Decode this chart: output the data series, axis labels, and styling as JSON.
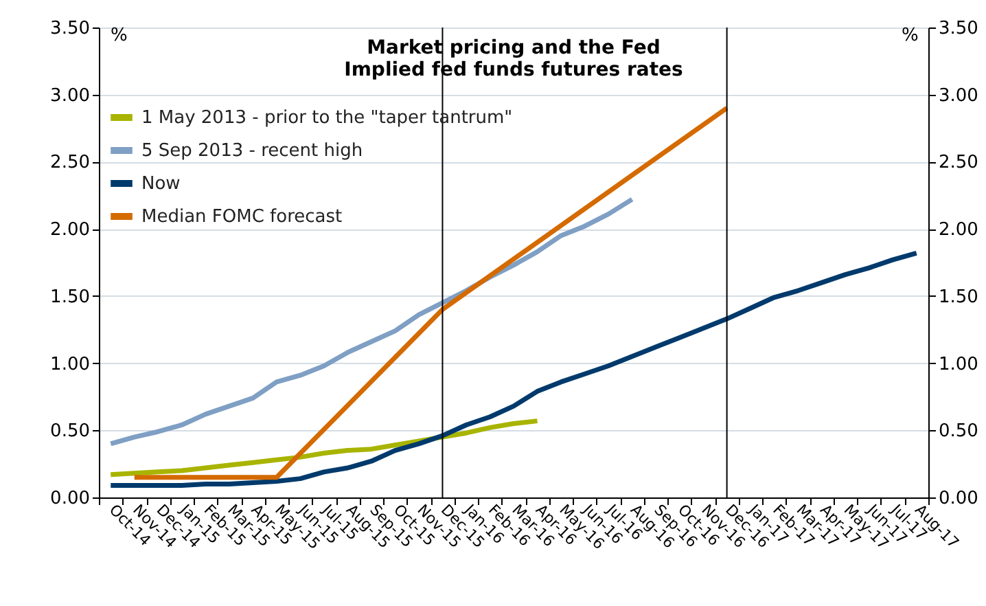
{
  "chart_data": {
    "type": "line",
    "title": "Market pricing and the Fed",
    "subtitle": "Implied fed funds futures rates",
    "ylabel": "%",
    "y2label": "%",
    "categories": [
      "Oct-14",
      "Nov-14",
      "Dec-14",
      "Jan-15",
      "Feb-15",
      "Mar-15",
      "Apr-15",
      "May-15",
      "Jun-15",
      "Jul-15",
      "Aug-15",
      "Sep-15",
      "Oct-15",
      "Nov-15",
      "Dec-15",
      "Jan-16",
      "Feb-16",
      "Mar-16",
      "Apr-16",
      "May-16",
      "Jun-16",
      "Jul-16",
      "Aug-16",
      "Sep-16",
      "Oct-16",
      "Nov-16",
      "Dec-16",
      "Jan-17",
      "Feb-17",
      "Mar-17",
      "Apr-17",
      "May-17",
      "Jun-17",
      "Jul-17",
      "Aug-17"
    ],
    "series": [
      {
        "name": "1 May 2013 - prior to the \"taper tantrum\"",
        "color": "#a8b400",
        "values": [
          0.17,
          0.18,
          0.19,
          0.2,
          0.22,
          0.24,
          0.26,
          0.28,
          0.3,
          0.33,
          0.35,
          0.36,
          0.39,
          0.42,
          0.45,
          0.48,
          0.52,
          0.55,
          0.57,
          null,
          null,
          null,
          null,
          null,
          null,
          null,
          null,
          null,
          null,
          null,
          null,
          null,
          null,
          null,
          null
        ]
      },
      {
        "name": "5 Sep 2013 - recent high",
        "color": "#7f9fc4",
        "values": [
          0.4,
          0.45,
          0.49,
          0.54,
          0.62,
          0.68,
          0.74,
          0.86,
          0.91,
          0.98,
          1.08,
          1.16,
          1.24,
          1.36,
          1.45,
          1.54,
          1.64,
          1.73,
          1.83,
          1.95,
          2.02,
          2.11,
          2.22,
          null,
          null,
          null,
          null,
          null,
          null,
          null,
          null,
          null,
          null,
          null,
          null
        ]
      },
      {
        "name": "Now",
        "color": "#003a6c",
        "values": [
          0.09,
          0.09,
          0.09,
          0.09,
          0.1,
          0.1,
          0.11,
          0.12,
          0.14,
          0.19,
          0.22,
          0.27,
          0.35,
          0.4,
          0.46,
          0.54,
          0.6,
          0.68,
          0.79,
          0.86,
          0.92,
          0.98,
          1.05,
          1.12,
          1.19,
          1.26,
          1.33,
          1.41,
          1.49,
          1.54,
          1.6,
          1.66,
          1.71,
          1.77,
          1.82
        ]
      },
      {
        "name": "Median FOMC forecast",
        "color": "#d46a00",
        "values": [
          null,
          0.15,
          null,
          null,
          null,
          null,
          null,
          0.15,
          null,
          null,
          null,
          null,
          null,
          null,
          1.4,
          null,
          null,
          null,
          null,
          null,
          null,
          null,
          null,
          null,
          null,
          null,
          2.9,
          null,
          null,
          null,
          null,
          null,
          null,
          null,
          null
        ]
      }
    ],
    "ylim": [
      0,
      3.5
    ],
    "yticks": [
      {
        "value": 0,
        "label": "0.00"
      },
      {
        "value": 0.5,
        "label": "0.50"
      },
      {
        "value": 1,
        "label": "1.00"
      },
      {
        "value": 1.5,
        "label": "1.50"
      },
      {
        "value": 2,
        "label": "2.00"
      },
      {
        "value": 2.5,
        "label": "2.50"
      },
      {
        "value": 3,
        "label": "3.00"
      },
      {
        "value": 3.5,
        "label": "3.50"
      }
    ],
    "y2lim": [
      0,
      3.5
    ],
    "y2ticks": [
      {
        "value": 0,
        "label": "0.00"
      },
      {
        "value": 0.5,
        "label": "0.50"
      },
      {
        "value": 1,
        "label": "1.00"
      },
      {
        "value": 1.5,
        "label": "1.50"
      },
      {
        "value": 2,
        "label": "2.00"
      },
      {
        "value": 2.5,
        "label": "2.50"
      },
      {
        "value": 3,
        "label": "3.00"
      },
      {
        "value": 3.5,
        "label": "3.50"
      }
    ],
    "ref_lines": [
      {
        "axis": "x",
        "value": "Dec-15",
        "color": "#000000"
      },
      {
        "axis": "x",
        "value": "Dec-16",
        "color": "#000000"
      }
    ],
    "grid": "y",
    "legend": "top left",
    "line_style": "solid",
    "marker": "none"
  }
}
